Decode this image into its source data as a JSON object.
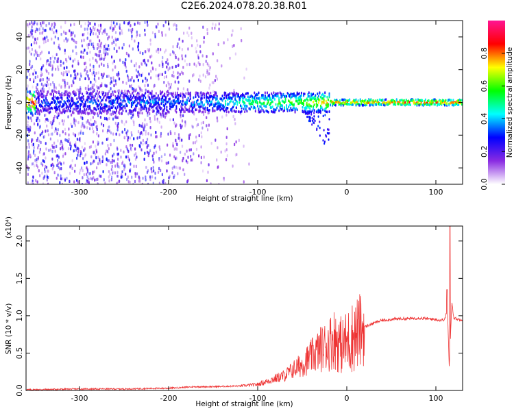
{
  "title": "C2E6.2024.078.20.38.R01",
  "chart_data": [
    {
      "type": "heatmap",
      "xlabel": "Height of straight line (km)",
      "ylabel": "Frequency (Hz)",
      "xlim": [
        -360,
        130
      ],
      "ylim": [
        -50,
        50
      ],
      "xticks": [
        -300,
        -200,
        -100,
        0,
        100
      ],
      "yticks": [
        -40,
        -20,
        0,
        20,
        40
      ],
      "grid": false,
      "colorbar": {
        "label": "Normalized spectral amplitude",
        "range": [
          0.0,
          1.0
        ],
        "ticks": [
          "0.0",
          "0.2",
          "0.4",
          "0.6",
          "0.8"
        ],
        "colors": [
          "#ffffff",
          "#8a2be2",
          "#0000ff",
          "#00ffff",
          "#00ff00",
          "#ffff00",
          "#ff0000",
          "#ff1493"
        ]
      },
      "ridge": {
        "frequency_hz": 0,
        "amplitude_by_height": [
          {
            "x": -350,
            "amp": 0.3
          },
          {
            "x": -200,
            "amp": 0.35
          },
          {
            "x": -150,
            "amp": 0.4
          },
          {
            "x": -100,
            "amp": 0.55
          },
          {
            "x": -60,
            "amp": 0.6
          },
          {
            "x": -20,
            "amp": 0.75
          },
          {
            "x": 0,
            "amp": 0.8
          },
          {
            "x": 50,
            "amp": 0.85
          },
          {
            "x": 100,
            "amp": 0.85
          },
          {
            "x": 130,
            "amp": 0.85
          }
        ]
      }
    },
    {
      "type": "line",
      "xlabel": "Height of straight line (km)",
      "ylabel": "SNR (10 * v/v)",
      "y_multiplier": "(x10⁴)",
      "xlim": [
        -360,
        130
      ],
      "ylim": [
        0,
        2.2
      ],
      "xticks": [
        -300,
        -200,
        -100,
        0,
        100
      ],
      "yticks": [
        "0.0",
        "0.5",
        "1.0",
        "1.5",
        "2.0"
      ],
      "grid": false,
      "series": [
        {
          "color": "#ee3333",
          "x": [
            -360,
            -300,
            -250,
            -200,
            -170,
            -150,
            -120,
            -100,
            -90,
            -80,
            -70,
            -60,
            -50,
            -40,
            -30,
            -20,
            -15,
            -10,
            -5,
            0,
            10,
            20,
            30,
            40,
            50,
            60,
            70,
            80,
            90,
            100,
            105,
            110,
            113,
            115,
            118,
            120,
            125,
            130
          ],
          "y": [
            0.01,
            0.02,
            0.02,
            0.03,
            0.05,
            0.05,
            0.06,
            0.08,
            0.12,
            0.16,
            0.2,
            0.28,
            0.35,
            0.45,
            0.55,
            0.62,
            0.7,
            0.65,
            0.6,
            0.65,
            0.75,
            0.85,
            0.9,
            0.94,
            0.95,
            0.96,
            0.96,
            0.97,
            0.96,
            0.95,
            0.94,
            0.95,
            1.1,
            0.3,
            1.2,
            0.97,
            0.95,
            0.95
          ]
        }
      ]
    }
  ]
}
